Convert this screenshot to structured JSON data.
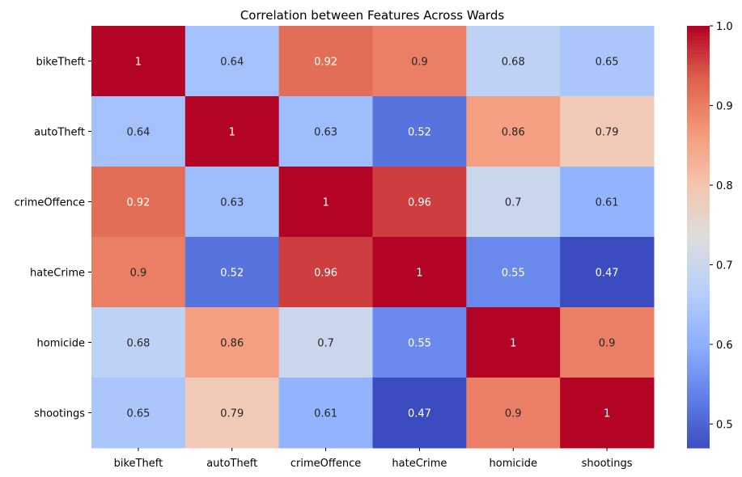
{
  "chart_data": {
    "type": "heatmap",
    "title": "Correlation between Features Across Wards",
    "xlabel": "",
    "ylabel": "",
    "x_categories": [
      "bikeTheft",
      "autoTheft",
      "crimeOffence",
      "hateCrime",
      "homicide",
      "shootings"
    ],
    "y_categories": [
      "bikeTheft",
      "autoTheft",
      "crimeOffence",
      "hateCrime",
      "homicide",
      "shootings"
    ],
    "values": [
      [
        1,
        0.64,
        0.92,
        0.9,
        0.68,
        0.65
      ],
      [
        0.64,
        1,
        0.63,
        0.52,
        0.86,
        0.79
      ],
      [
        0.92,
        0.63,
        1,
        0.96,
        0.7,
        0.61
      ],
      [
        0.9,
        0.52,
        0.96,
        1,
        0.55,
        0.47
      ],
      [
        0.68,
        0.86,
        0.7,
        0.55,
        1,
        0.9
      ],
      [
        0.65,
        0.79,
        0.61,
        0.47,
        0.9,
        1
      ]
    ],
    "colormap": "coolwarm",
    "value_range": [
      0.47,
      1.0
    ],
    "colorbar_ticks": [
      "0.5",
      "0.6",
      "0.7",
      "0.8",
      "0.9",
      "1.0"
    ],
    "colorbar_tick_values": [
      0.5,
      0.6,
      0.7,
      0.8,
      0.9,
      1.0
    ],
    "annotations": true,
    "grid": false
  }
}
